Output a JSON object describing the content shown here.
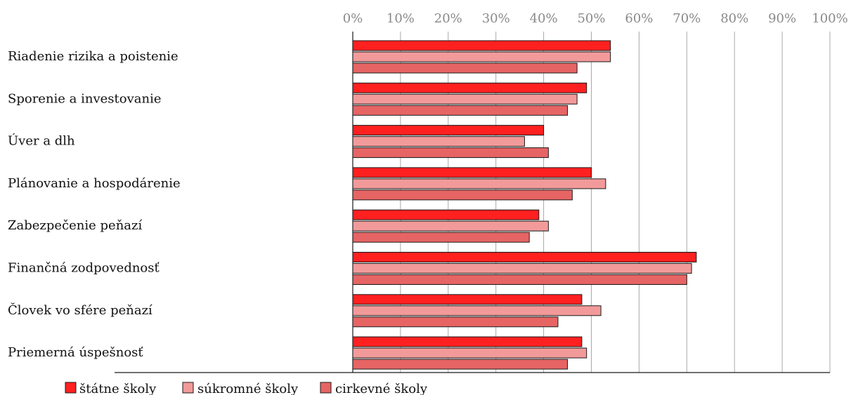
{
  "chart_data": {
    "type": "bar",
    "orientation": "horizontal",
    "categories": [
      "Riadenie rizika a poistenie",
      "Sporenie a investovanie",
      "Úver a dlh",
      "Plánovanie a hospodárenie",
      "Zabezpečenie peňazí",
      "Finančná zodpovednosť",
      "Človek vo sfére peňazí",
      "Priemerná úspešnosť"
    ],
    "series": [
      {
        "name": "štátne školy",
        "color": "#ff2020",
        "values": [
          54,
          49,
          40,
          50,
          39,
          72,
          48,
          48
        ]
      },
      {
        "name": "súkromné školy",
        "color": "#f29a9a",
        "values": [
          54,
          47,
          36,
          53,
          41,
          71,
          52,
          49
        ]
      },
      {
        "name": "cirkevné školy",
        "color": "#e66464",
        "values": [
          47,
          45,
          41,
          46,
          37,
          70,
          43,
          45
        ]
      }
    ],
    "xlim": [
      0,
      100
    ],
    "x_ticks": [
      "0%",
      "10%",
      "20%",
      "30%",
      "40%",
      "50%",
      "60%",
      "70%",
      "80%",
      "90%",
      "100%"
    ],
    "grid": true,
    "legend_position": "bottom-left"
  }
}
